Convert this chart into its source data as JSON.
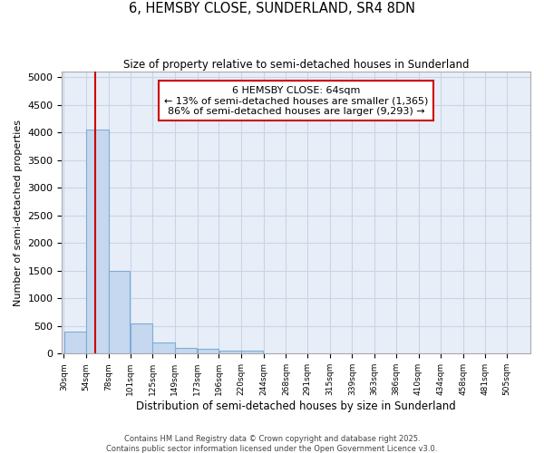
{
  "title": "6, HEMSBY CLOSE, SUNDERLAND, SR4 8DN",
  "subtitle": "Size of property relative to semi-detached houses in Sunderland",
  "xlabel": "Distribution of semi-detached houses by size in Sunderland",
  "ylabel": "Number of semi-detached properties",
  "footnote1": "Contains HM Land Registry data © Crown copyright and database right 2025.",
  "footnote2": "Contains public sector information licensed under the Open Government Licence v3.0.",
  "annotation_title": "6 HEMSBY CLOSE: 64sqm",
  "annotation_line1": "← 13% of semi-detached houses are smaller (1,365)",
  "annotation_line2": "86% of semi-detached houses are larger (9,293) →",
  "property_size": 64,
  "bar_left_edges": [
    30,
    54,
    78,
    101,
    125,
    149,
    173,
    196,
    220,
    244,
    268,
    291,
    315,
    339,
    363,
    386,
    410,
    434,
    458,
    481
  ],
  "bar_widths": [
    24,
    24,
    23,
    24,
    24,
    24,
    23,
    24,
    24,
    24,
    23,
    24,
    24,
    24,
    23,
    24,
    24,
    24,
    23,
    24
  ],
  "bar_heights": [
    400,
    4050,
    1500,
    550,
    200,
    100,
    80,
    60,
    50,
    0,
    0,
    0,
    0,
    0,
    0,
    0,
    0,
    0,
    0,
    0
  ],
  "bar_color": "#c5d8ef",
  "bar_edge_color": "#7eadd4",
  "red_line_color": "#cc0000",
  "annotation_box_color": "#cc0000",
  "grid_color": "#c8d4e8",
  "background_color": "#e8eef8",
  "ylim": [
    0,
    5100
  ],
  "yticks": [
    0,
    500,
    1000,
    1500,
    2000,
    2500,
    3000,
    3500,
    4000,
    4500,
    5000
  ],
  "tick_labels": [
    "30sqm",
    "54sqm",
    "78sqm",
    "101sqm",
    "125sqm",
    "149sqm",
    "173sqm",
    "196sqm",
    "220sqm",
    "244sqm",
    "268sqm",
    "291sqm",
    "315sqm",
    "339sqm",
    "363sqm",
    "386sqm",
    "410sqm",
    "434sqm",
    "458sqm",
    "481sqm",
    "505sqm"
  ]
}
